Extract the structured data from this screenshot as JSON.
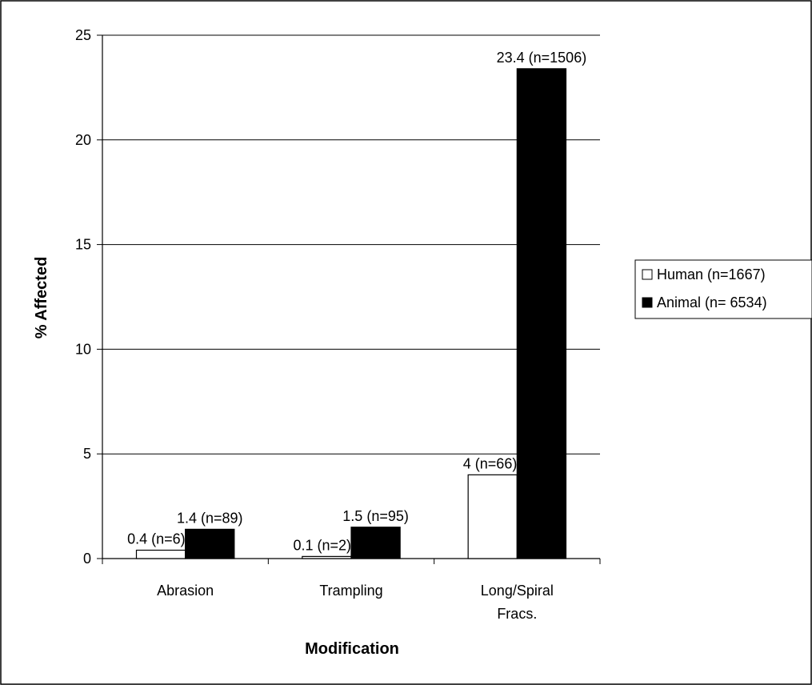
{
  "chart_data": {
    "type": "bar",
    "xlabel": "Modification",
    "ylabel": "% Affected",
    "ylim": [
      0,
      25
    ],
    "yticks": [
      0,
      5,
      10,
      15,
      20,
      25
    ],
    "grid": true,
    "legend_position": "right",
    "categories": [
      [
        "Abrasion"
      ],
      [
        "Trampling"
      ],
      [
        "Long/Spiral",
        "Fracs."
      ]
    ],
    "series": [
      {
        "name": "Human (n=1667)",
        "color": "#ffffff",
        "values": [
          0.4,
          0.1,
          4
        ],
        "labels": [
          "0.4 (n=6)",
          "0.1 (n=2)",
          "4 (n=66)"
        ]
      },
      {
        "name": "Animal (n= 6534)",
        "color": "#000000",
        "values": [
          1.4,
          1.5,
          23.4
        ],
        "labels": [
          "1.4 (n=89)",
          "1.5 (n=95)",
          "23.4 (n=1506)"
        ]
      }
    ]
  }
}
